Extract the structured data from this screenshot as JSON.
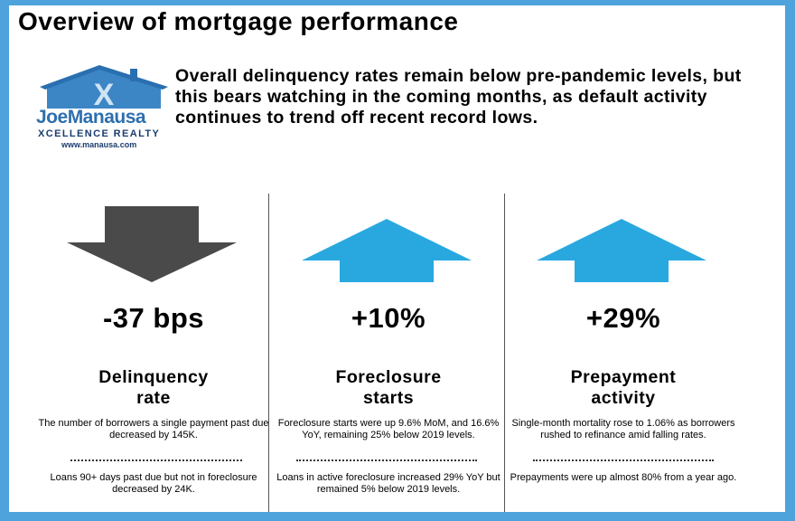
{
  "title": "Overview of mortgage performance",
  "logo": {
    "name_first": "Joe",
    "name_last": "Manausa",
    "tagline": "XCELLENCE REALTY",
    "url": "www.manausa.com"
  },
  "intro": "Overall delinquency rates remain below pre-pandemic levels, but this bears watching in the coming months, as default activity continues to trend off recent record lows.",
  "colors": {
    "down_arrow": "#4a4a4a",
    "up_arrow": "#29a8e0",
    "border": "#4fa3dc"
  },
  "metrics": [
    {
      "arrow": "down-arrow-icon",
      "value": "-37 bps",
      "label_line1": "Delinquency",
      "label_line2": "rate",
      "desc1": "The number of borrowers a single payment past due decreased by 145K.",
      "desc2": "Loans 90+ days past due but not in foreclosure decreased by 24K."
    },
    {
      "arrow": "up-arrow-icon",
      "value": "+10%",
      "label_line1": "Foreclosure",
      "label_line2": "starts",
      "desc1": "Foreclosure starts were up 9.6% MoM, and 16.6% YoY, remaining 25% below 2019 levels.",
      "desc2": "Loans in active foreclosure increased 29% YoY but remained 5% below 2019 levels."
    },
    {
      "arrow": "up-arrow-icon",
      "value": "+29%",
      "label_line1": "Prepayment",
      "label_line2": "activity",
      "desc1": "Single-month mortality rose to 1.06% as borrowers rushed to refinance amid falling rates.",
      "desc2": "Prepayments were up almost 80% from a year ago."
    }
  ]
}
